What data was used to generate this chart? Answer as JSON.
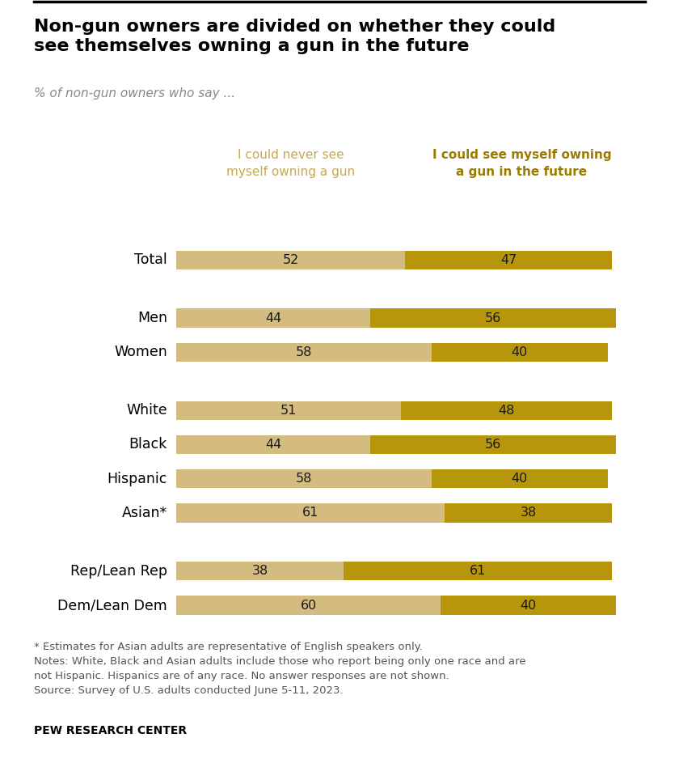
{
  "title": "Non-gun owners are divided on whether they could\nsee themselves owning a gun in the future",
  "subtitle": "% of non-gun owners who say ...",
  "legend_label_never": "I could never see\nmyself owning a gun",
  "legend_label_could": "I could see myself owning\na gun in the future",
  "categories": [
    "Total",
    "Men",
    "Women",
    "White",
    "Black",
    "Hispanic",
    "Asian*",
    "Rep/Lean Rep",
    "Dem/Lean Dem"
  ],
  "never_values": [
    52,
    44,
    58,
    51,
    44,
    58,
    61,
    38,
    60
  ],
  "could_values": [
    47,
    56,
    40,
    48,
    56,
    40,
    38,
    61,
    40
  ],
  "color_never": "#d4bc80",
  "color_could": "#b8960c",
  "footnote_line1": "* Estimates for Asian adults are representative of English speakers only.",
  "footnote_line2": "Notes: White, Black and Asian adults include those who report being only one race and are",
  "footnote_line3": "not Hispanic. Hispanics are of any race. No answer responses are not shown.",
  "footnote_line4": "Source: Survey of U.S. adults conducted June 5-11, 2023.",
  "source_label": "PEW RESEARCH CENTER",
  "background_color": "#ffffff",
  "bar_height": 0.55,
  "xlim_max": 105,
  "bar_scale": 0.72
}
